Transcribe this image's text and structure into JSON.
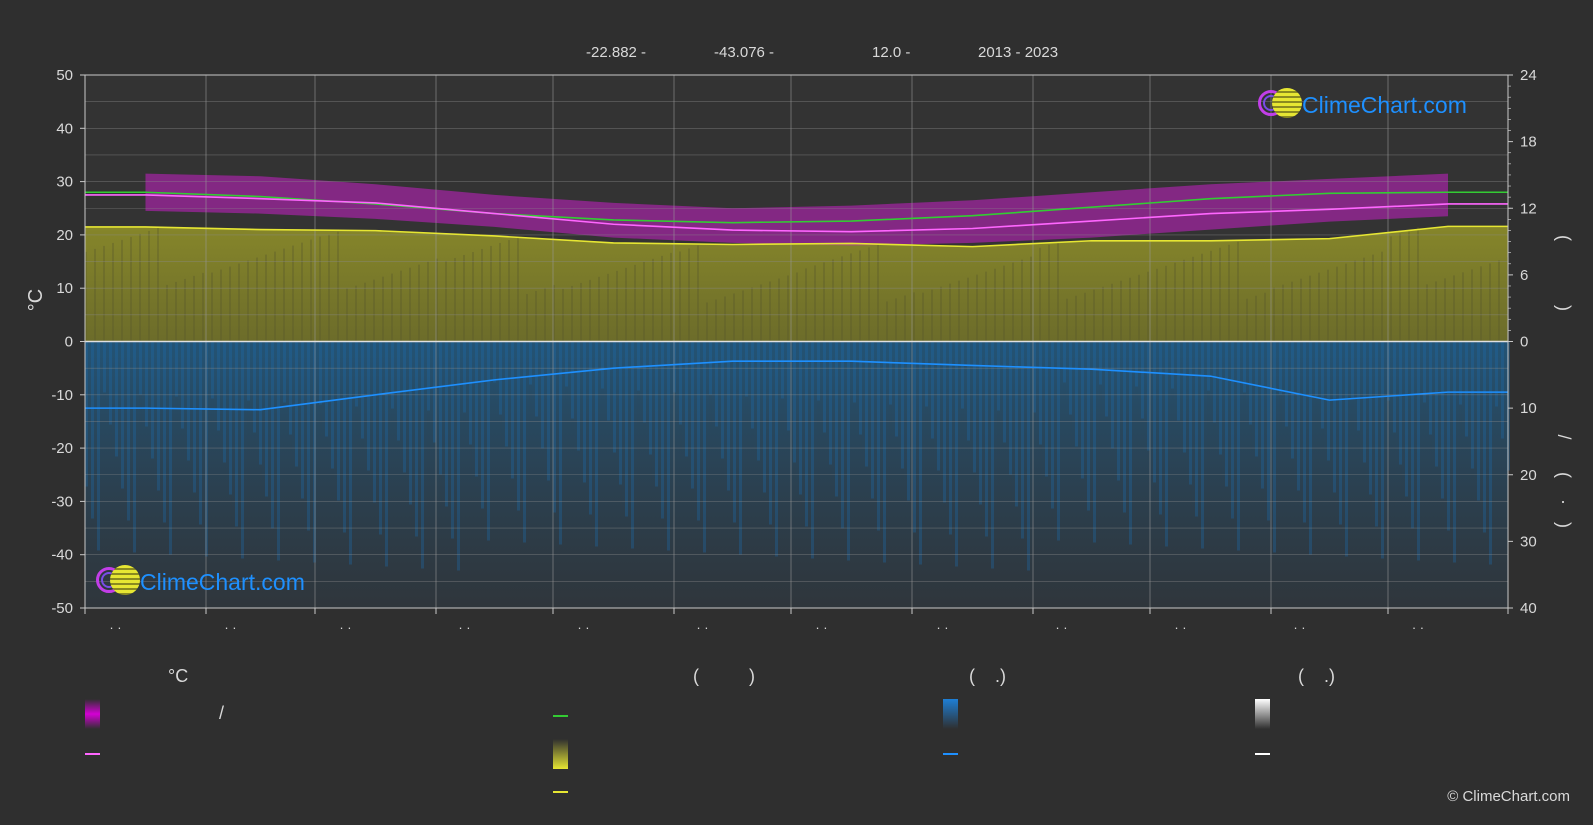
{
  "header": {
    "lat": "-22.882 -",
    "lon": "-43.076 -",
    "elev": "12.0 -",
    "years": "2013 - 2023"
  },
  "logo_text": "ClimeChart.com",
  "copyright": "© ClimeChart.com",
  "legend": {
    "col1_title": "°C",
    "col2_title": "(          )",
    "col3_title": "(    .)",
    "col4_title": "(    .)",
    "col1_row1_text": "/",
    "swatches": {
      "temp_range": "#d400d4",
      "mean_temp": "#ff66ff",
      "daylight": "#33cc33",
      "sunshine": "#e6e633",
      "sunshine_line": "#e6e633",
      "rain": "#1e7fd6",
      "rain_line": "#1e90ff",
      "snow": "#cfcfcf",
      "snow_line": "#ffffff"
    }
  },
  "chart_data": {
    "type": "line",
    "x_categories": [
      "· ·",
      "· ·",
      "· ·",
      "· ·",
      "· ·",
      "· ·",
      "· ·",
      "· ·",
      "· ·",
      "· ·",
      "· ·",
      "· ·"
    ],
    "ylabel_left": "°C",
    "ylim_left": [
      -50,
      50
    ],
    "yticks_left": [
      50,
      40,
      30,
      20,
      10,
      0,
      -10,
      -20,
      -30,
      -40,
      -50
    ],
    "yticks_right_top": [
      24,
      18,
      12,
      6,
      0
    ],
    "yticks_right_bottom": [
      10,
      20,
      30,
      40
    ],
    "right_label_glyphs": [
      "(",
      ")",
      "/",
      "(",
      "·",
      ")"
    ],
    "grid": true,
    "series": [
      {
        "key": "daylight",
        "color": "#33cc33",
        "values": [
          28.0,
          27.2,
          25.8,
          24.0,
          22.8,
          22.3,
          22.6,
          23.6,
          25.2,
          26.8,
          27.8,
          28.0
        ]
      },
      {
        "key": "mean_temp",
        "color": "#ff66ff",
        "values": [
          27.5,
          26.8,
          26.0,
          24.0,
          22.0,
          20.9,
          20.6,
          21.2,
          22.6,
          24.0,
          24.8,
          25.8
        ]
      },
      {
        "key": "sunshine",
        "color": "#e6e633",
        "values": [
          21.5,
          21.0,
          20.8,
          19.8,
          18.5,
          18.2,
          18.4,
          17.8,
          18.9,
          18.9,
          19.3,
          21.6
        ]
      },
      {
        "key": "rain",
        "color": "#1e90ff",
        "values": [
          -12.5,
          -12.8,
          -10.0,
          -7.2,
          -5.0,
          -3.7,
          -3.7,
          -4.5,
          -5.2,
          -6.5,
          -11.0,
          -9.5
        ]
      }
    ],
    "temp_band": {
      "color": "#d400d4",
      "upper": [
        31.5,
        31.0,
        29.5,
        27.5,
        26.0,
        25.0,
        25.5,
        26.5,
        28.0,
        29.5,
        30.5,
        31.5
      ],
      "lower": [
        24.5,
        24.0,
        23.0,
        21.5,
        19.5,
        18.5,
        18.0,
        18.5,
        19.5,
        21.0,
        22.5,
        23.5
      ]
    }
  }
}
